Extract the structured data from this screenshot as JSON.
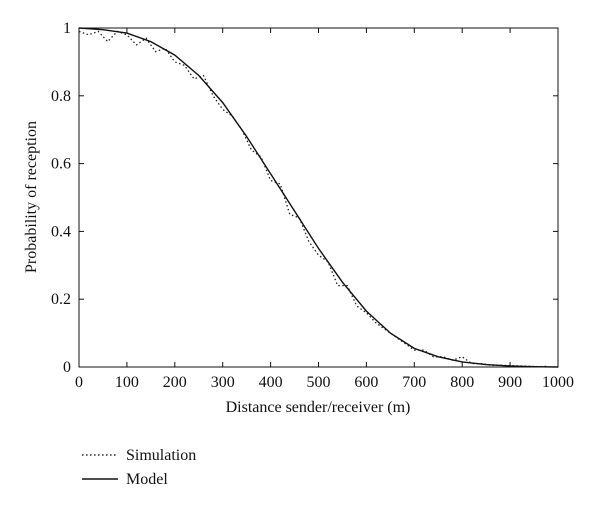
{
  "chart_data": {
    "type": "line",
    "xlabel": "Distance sender/receiver (m)",
    "ylabel": "Probability of reception",
    "xlim": [
      0,
      1000
    ],
    "xticks": [
      0,
      100,
      200,
      300,
      400,
      500,
      600,
      700,
      800,
      900,
      1000
    ],
    "ylim": [
      0,
      1
    ],
    "yticks": [
      0,
      0.2,
      0.4,
      0.6,
      0.8,
      1
    ],
    "grid": false,
    "series": [
      {
        "name": "Simulation",
        "color": "#222222",
        "style": "dotted",
        "x": [
          0,
          20,
          40,
          60,
          80,
          100,
          120,
          140,
          160,
          180,
          200,
          220,
          240,
          260,
          280,
          300,
          320,
          340,
          360,
          380,
          400,
          420,
          440,
          460,
          480,
          500,
          520,
          540,
          560,
          580,
          600,
          620,
          640,
          660,
          680,
          700,
          720,
          740,
          760,
          780,
          800,
          820,
          840,
          860,
          880,
          900,
          920,
          940,
          960,
          980
        ],
        "values": [
          0.99,
          0.98,
          0.99,
          0.96,
          0.99,
          0.98,
          0.95,
          0.97,
          0.93,
          0.94,
          0.9,
          0.89,
          0.85,
          0.86,
          0.8,
          0.76,
          0.74,
          0.7,
          0.64,
          0.62,
          0.55,
          0.54,
          0.45,
          0.44,
          0.37,
          0.33,
          0.31,
          0.24,
          0.24,
          0.18,
          0.16,
          0.13,
          0.11,
          0.09,
          0.07,
          0.05,
          0.05,
          0.03,
          0.03,
          0.02,
          0.03,
          0.01,
          0.01,
          0.005,
          0.005,
          0.004,
          0.003,
          0.002,
          0.001,
          0.002
        ]
      },
      {
        "name": "Model",
        "color": "#111111",
        "style": "solid",
        "x": [
          0,
          50,
          100,
          150,
          200,
          250,
          300,
          350,
          400,
          450,
          500,
          550,
          600,
          650,
          700,
          750,
          800,
          850,
          900,
          950,
          1000
        ],
        "values": [
          1.0,
          0.995,
          0.985,
          0.96,
          0.92,
          0.86,
          0.78,
          0.68,
          0.57,
          0.46,
          0.35,
          0.25,
          0.165,
          0.1,
          0.055,
          0.03,
          0.015,
          0.007,
          0.003,
          0.001,
          0
        ]
      }
    ]
  }
}
